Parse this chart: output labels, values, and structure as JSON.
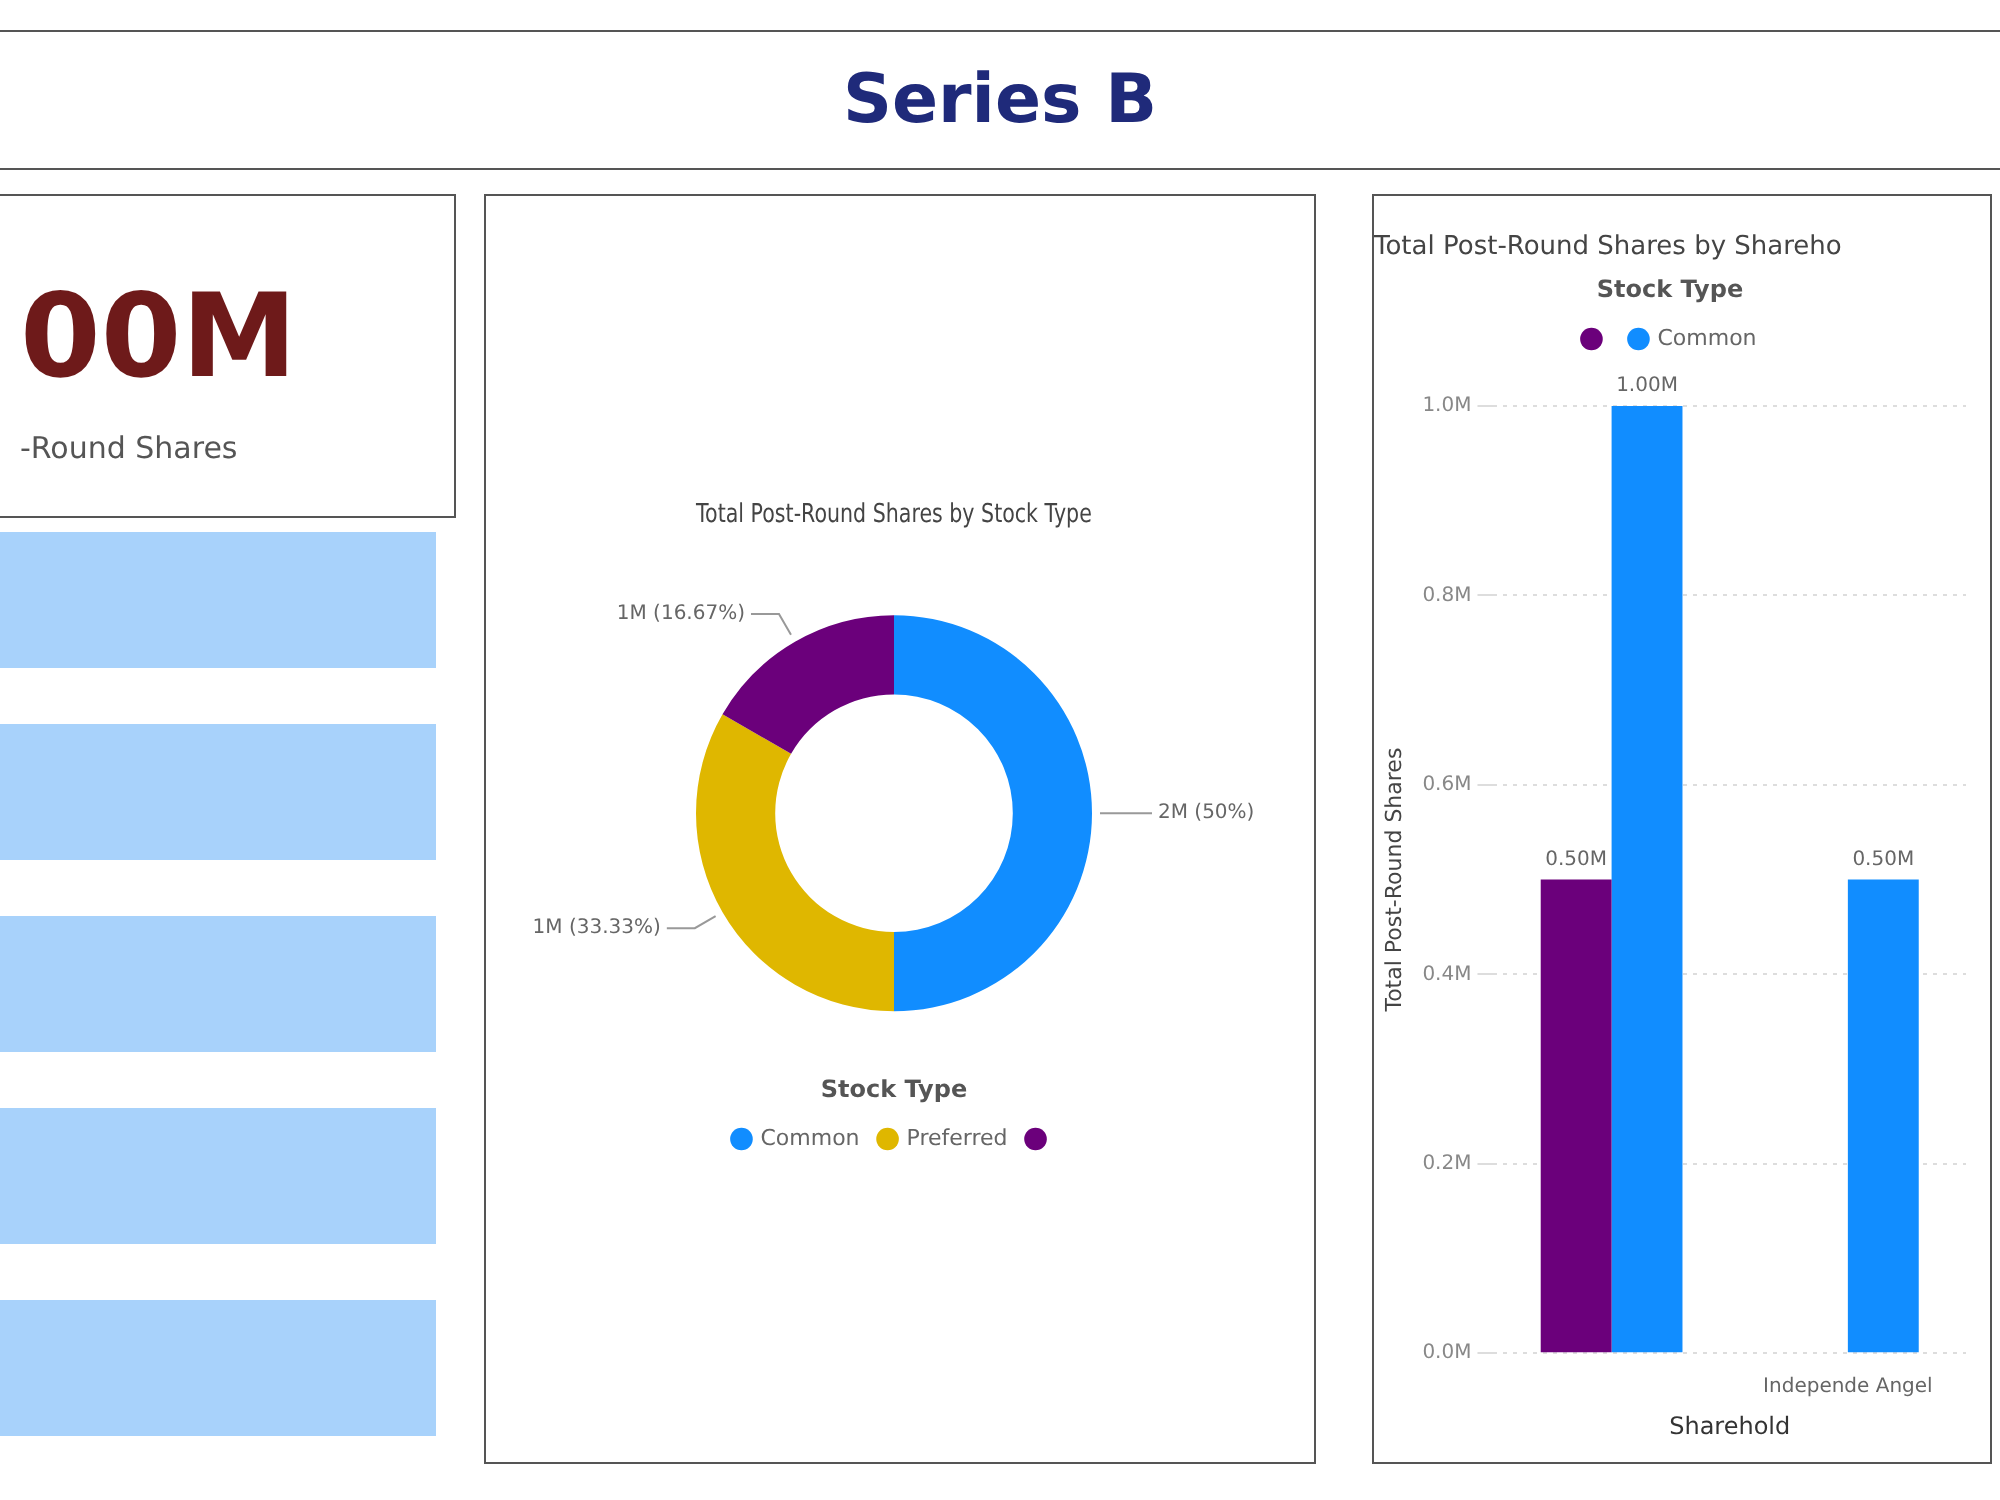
{
  "chart_data": [
    {
      "type": "other",
      "title": "Series B",
      "annotations": [
        "00M",
        "-Round Shares"
      ]
    },
    {
      "type": "donut",
      "title": "Total Post-Round Shares by Stock Type",
      "categories": [
        "Common",
        "Preferred",
        null
      ],
      "values": [
        50,
        33.33,
        16.67
      ],
      "colors": [
        "#118dff",
        "#dfb700",
        "#6b007b"
      ],
      "value_labels": [
        "2M (50%)",
        "1M (33.33%)",
        "1M (16.67%)"
      ],
      "legend": "bottom",
      "legend_title": "Stock Type"
    },
    {
      "type": "bar",
      "title": "Total Post-Round Shares by Shareho",
      "ylabel": "Total Post-Round Shares",
      "xlabel": "Sharehold",
      "categories": [
        null,
        "Independe Angel"
      ],
      "series": [
        {
          "color": "#6b007b",
          "values": [
            0.5,
            null
          ],
          "value_labels": [
            "0.50M",
            null
          ]
        },
        {
          "name": "Common",
          "color": "#118dff",
          "values": [
            1.0,
            0.5
          ],
          "value_labels": [
            "1.00M",
            "0.50M"
          ]
        }
      ],
      "ylim": [
        0,
        1.0
      ],
      "yticks": [
        {
          "value": 0,
          "label": "0.0M"
        },
        {
          "value": 0.2,
          "label": "0.2M"
        },
        {
          "value": 0.4,
          "label": "0.4M"
        },
        {
          "value": 0.6,
          "label": "0.6M"
        },
        {
          "value": 0.8,
          "label": "0.8M"
        },
        {
          "value": 1.0,
          "label": "1.0M"
        }
      ],
      "grid": "y",
      "legend": "top",
      "legend_title": "Stock Type"
    }
  ]
}
